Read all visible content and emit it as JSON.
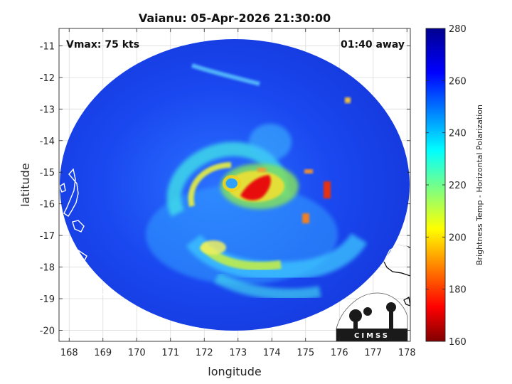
{
  "title": "Vaianu: 05-Apr-2026 21:30:00",
  "annotations": {
    "vmax": "Vmax: 75 kts",
    "eta": "01:40 away"
  },
  "axes": {
    "xlabel": "longitude",
    "ylabel": "latitude",
    "xlim": [
      167.7,
      178.1
    ],
    "ylim": [
      -20.35,
      -10.45
    ],
    "xticks": [
      168,
      169,
      170,
      171,
      172,
      173,
      174,
      175,
      176,
      177,
      178
    ],
    "yticks": [
      -11,
      -12,
      -13,
      -14,
      -15,
      -16,
      -17,
      -18,
      -19,
      -20
    ],
    "grid": true
  },
  "colorbar": {
    "label": "Brightness Temp - Horizontal Polarization",
    "min": 160,
    "max": 280,
    "ticks": [
      160,
      180,
      200,
      220,
      240,
      260,
      280
    ],
    "colormap": "jet"
  },
  "swath": {
    "center_lon": 172.85,
    "center_lat": -15.55,
    "radius_lon": 5.55,
    "radius_lat": 4.45
  },
  "storm": {
    "eye_lon": 173.0,
    "eye_lat": -15.25,
    "min_brightness_temp": 170
  },
  "logo": {
    "text": "CIMSS"
  },
  "colors": {
    "background_field": "#1840e8",
    "coastline": "#ffffff",
    "outside_coast": "#000000"
  }
}
